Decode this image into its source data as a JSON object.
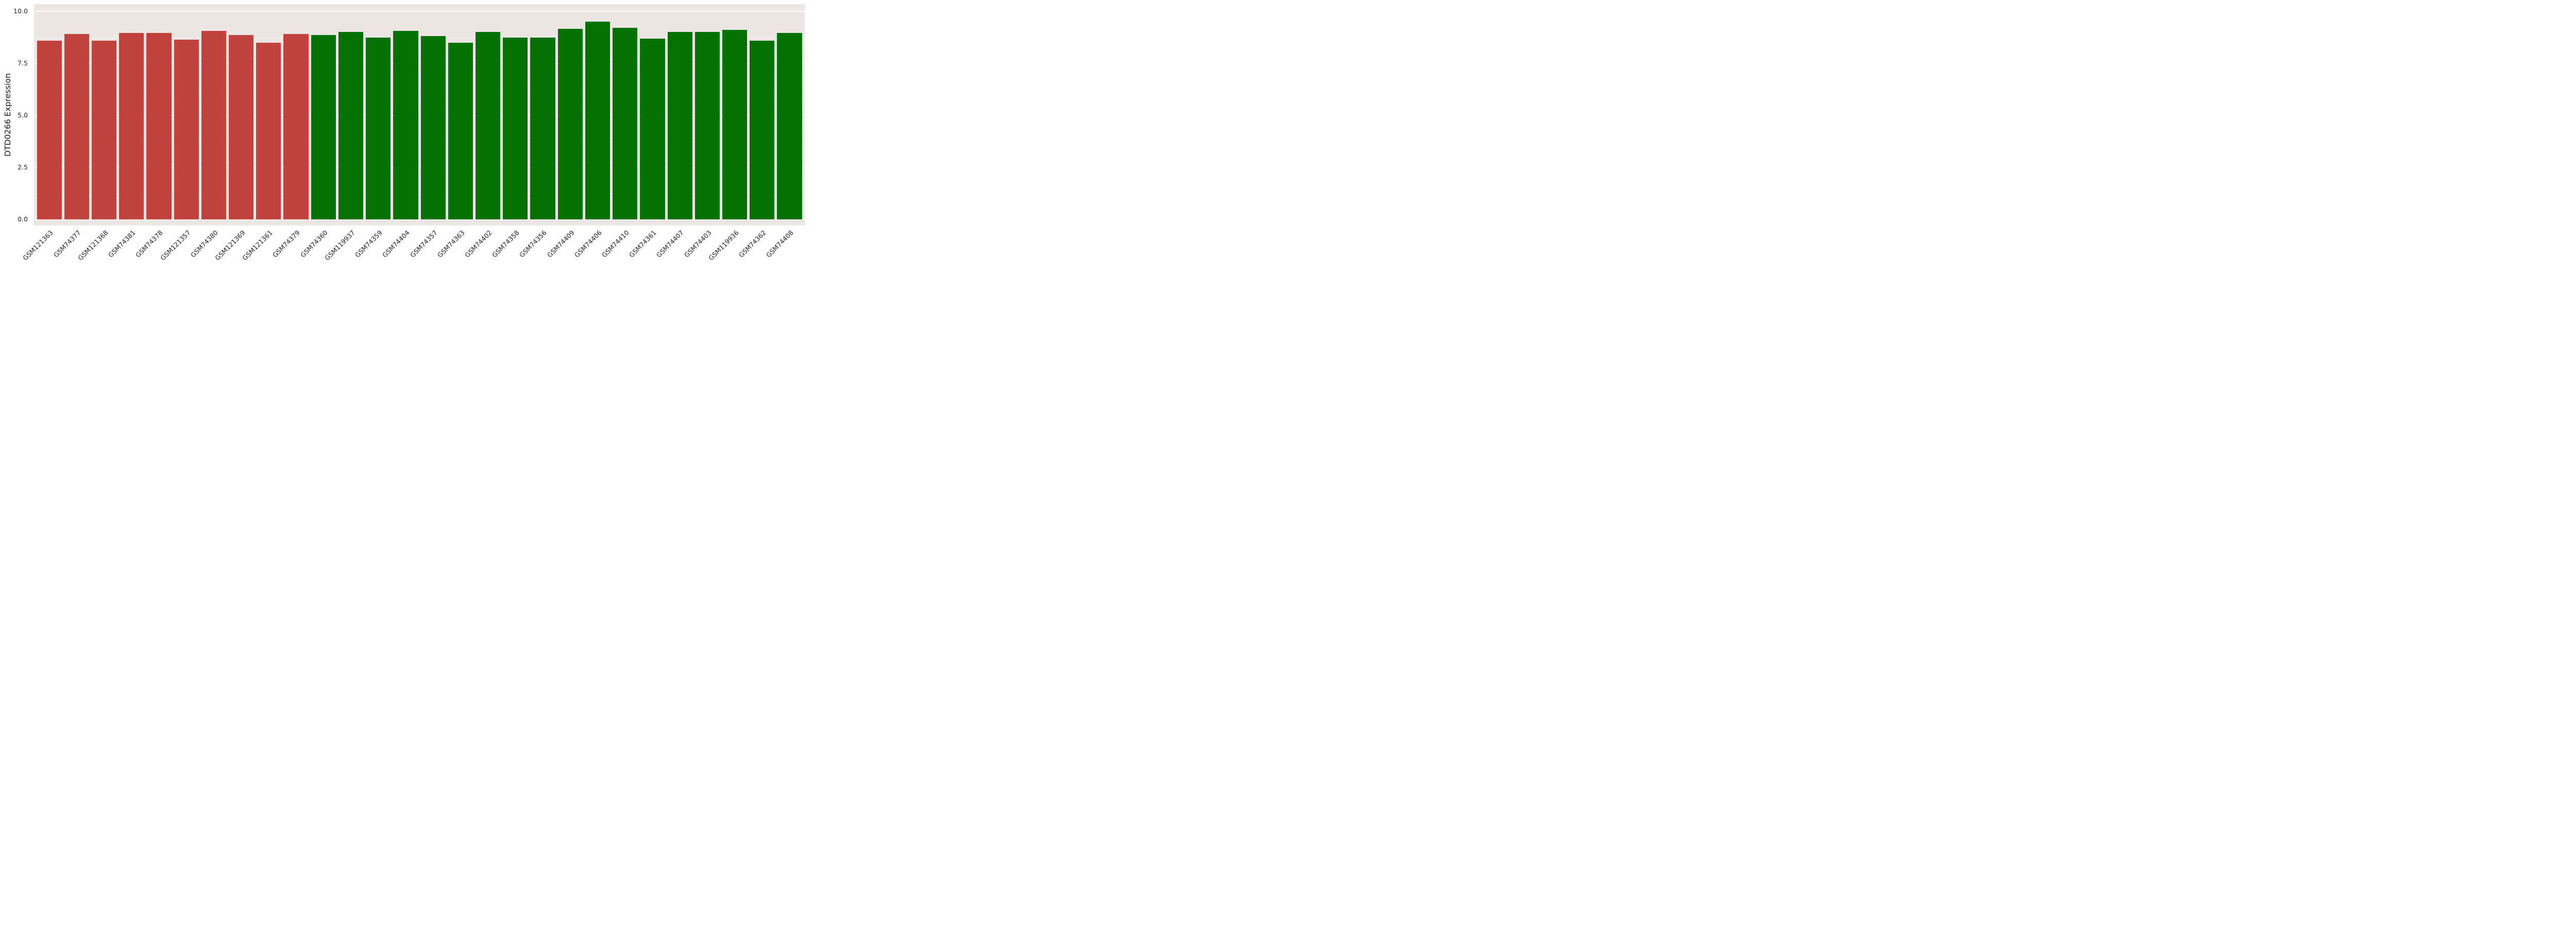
{
  "chart_data": {
    "type": "bar",
    "title": "",
    "xlabel": "",
    "ylabel": "DTD0266 Expression",
    "ylim": [
      0,
      10
    ],
    "yticks": [
      0.0,
      2.5,
      5.0,
      7.5,
      10.0
    ],
    "minor_yticks": [
      1.25,
      3.75,
      6.25,
      8.75
    ],
    "grid": true,
    "legend": "none",
    "categories": [
      "GSM121363",
      "GSM74377",
      "GSM121368",
      "GSM74381",
      "GSM74378",
      "GSM121357",
      "GSM74380",
      "GSM121369",
      "GSM121361",
      "GSM74379",
      "GSM74360",
      "GSM119937",
      "GSM74359",
      "GSM74404",
      "GSM74357",
      "GSM74363",
      "GSM74402",
      "GSM74358",
      "GSM74356",
      "GSM74409",
      "GSM74406",
      "GSM74410",
      "GSM74361",
      "GSM74407",
      "GSM74403",
      "GSM119936",
      "GSM74362",
      "GSM74408"
    ],
    "values": [
      8.6,
      8.9,
      8.6,
      8.95,
      8.95,
      8.65,
      9.05,
      8.85,
      8.5,
      8.9,
      8.85,
      9.0,
      8.75,
      9.05,
      8.8,
      8.5,
      9.0,
      8.75,
      8.75,
      9.15,
      9.5,
      9.2,
      8.7,
      9.0,
      9.0,
      9.1,
      8.6,
      8.95
    ],
    "bar_colors": [
      "#C2433D",
      "#C2433D",
      "#C2433D",
      "#C2433D",
      "#C2433D",
      "#C2433D",
      "#C2433D",
      "#C2433D",
      "#C2433D",
      "#C2433D",
      "#067206",
      "#067206",
      "#067206",
      "#067206",
      "#067206",
      "#067206",
      "#067206",
      "#067206",
      "#067206",
      "#067206",
      "#067206",
      "#067206",
      "#067206",
      "#067206",
      "#067206",
      "#067206",
      "#067206",
      "#067206"
    ]
  },
  "colors": {
    "group_red": "#C2433D",
    "group_green": "#067206",
    "plot_background": "#EBE5E3",
    "gridline": "#FFFFFF",
    "figure_background": "#FFFFFF",
    "axis_text": "#262626"
  }
}
